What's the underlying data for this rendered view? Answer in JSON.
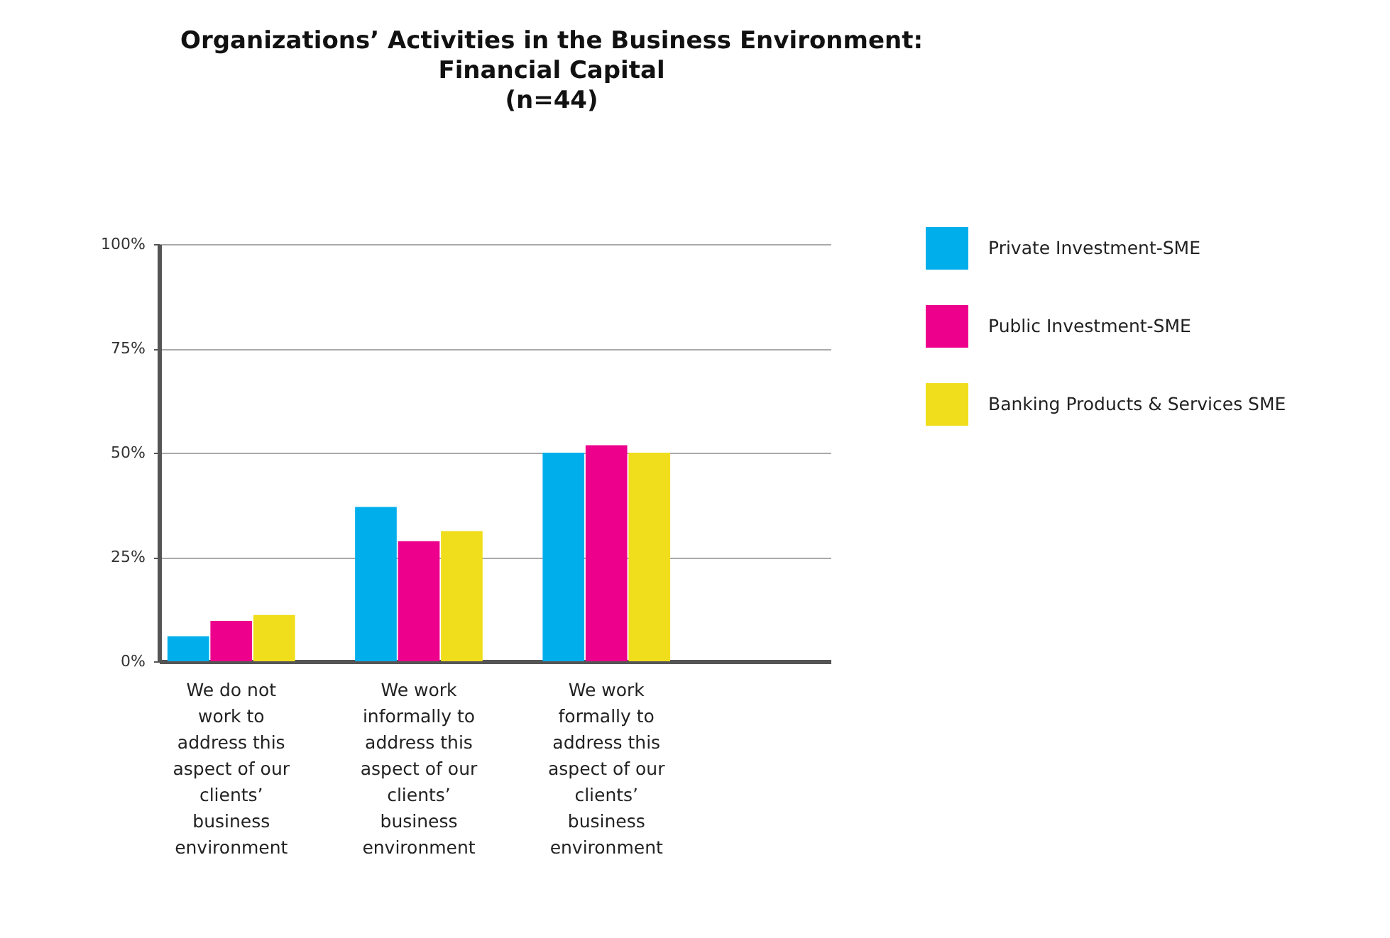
{
  "chart_data": {
    "type": "bar",
    "title": "Organizations’ Activities in the Business Environment:\nFinancial Capital\n(n=44)",
    "categories": [
      "We do not work to address this aspect of our clients’ business environment",
      "We work informally to address this aspect of our clients’ business environment",
      "We work formally to address this aspect of our clients’ business environment"
    ],
    "series": [
      {
        "name": "Private Investment-SME",
        "color": "#00aeeb",
        "values": [
          6.0,
          37.0,
          50.0
        ]
      },
      {
        "name": "Public Investment-SME",
        "color": "#ec008c",
        "values": [
          9.7,
          28.8,
          51.8
        ]
      },
      {
        "name": "Banking Products & Services SME",
        "color": "#f0de1c",
        "values": [
          11.1,
          31.2,
          50.0
        ]
      }
    ],
    "ylim": [
      0,
      100
    ],
    "yticks": [
      {
        "value": 0,
        "label": "0%"
      },
      {
        "value": 25,
        "label": "25%"
      },
      {
        "value": 50,
        "label": "50%"
      },
      {
        "value": 75,
        "label": "75%"
      },
      {
        "value": 100,
        "label": "100%"
      }
    ],
    "grid": "y",
    "legend": "right"
  }
}
